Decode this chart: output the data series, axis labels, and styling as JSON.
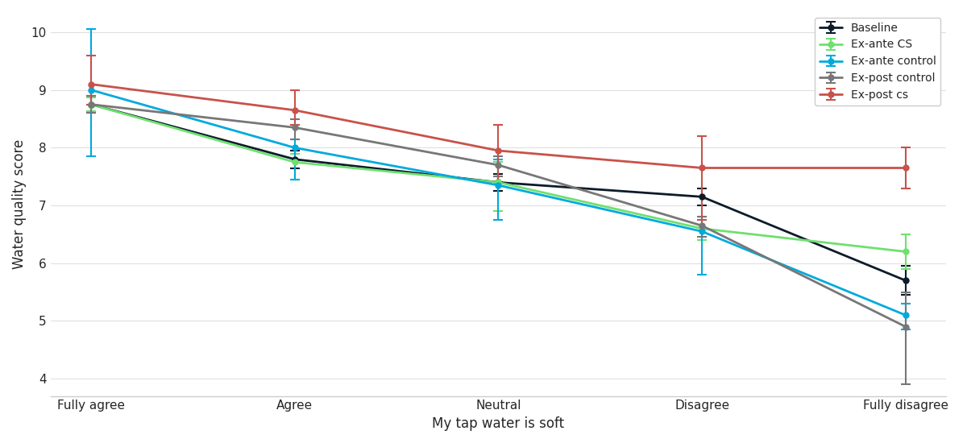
{
  "categories": [
    "Fully agree",
    "Agree",
    "Neutral",
    "Disagree",
    "Fully disagree"
  ],
  "series": [
    {
      "label": "Baseline",
      "color": "#0d1b2a",
      "y": [
        8.75,
        7.8,
        7.4,
        7.15,
        5.7
      ],
      "yerr_low": [
        0.15,
        0.15,
        0.15,
        0.15,
        0.25
      ],
      "yerr_high": [
        0.15,
        0.15,
        0.15,
        0.15,
        0.25
      ]
    },
    {
      "label": "Ex-ante CS",
      "color": "#6fe06f",
      "y": [
        8.75,
        7.75,
        7.4,
        6.6,
        6.2
      ],
      "yerr_low": [
        0.12,
        0.3,
        0.5,
        0.2,
        0.3
      ],
      "yerr_high": [
        0.12,
        0.15,
        0.35,
        0.2,
        0.3
      ]
    },
    {
      "label": "Ex-ante control",
      "color": "#00aadd",
      "y": [
        9.0,
        8.0,
        7.35,
        6.55,
        5.1
      ],
      "yerr_low": [
        1.15,
        0.55,
        0.6,
        0.75,
        0.25
      ],
      "yerr_high": [
        1.05,
        0.15,
        0.45,
        0.2,
        0.2
      ]
    },
    {
      "label": "Ex-post control",
      "color": "#777777",
      "y": [
        8.75,
        8.35,
        7.7,
        6.65,
        4.9
      ],
      "yerr_low": [
        0.15,
        0.2,
        0.2,
        0.2,
        1.0
      ],
      "yerr_high": [
        0.15,
        0.15,
        0.15,
        0.15,
        0.6
      ]
    },
    {
      "label": "Ex-post cs",
      "color": "#c8524a",
      "y": [
        9.1,
        8.65,
        7.95,
        7.65,
        7.65
      ],
      "yerr_low": [
        0.35,
        0.25,
        0.55,
        0.9,
        0.35
      ],
      "yerr_high": [
        0.5,
        0.35,
        0.45,
        0.55,
        0.35
      ]
    }
  ],
  "xlabel": "My tap water is soft",
  "ylabel": "Water quality score",
  "ylim": [
    3.7,
    10.35
  ],
  "yticks": [
    4,
    5,
    6,
    7,
    8,
    9,
    10
  ],
  "legend_loc": "upper right",
  "figsize": [
    12.0,
    5.5
  ],
  "dpi": 100
}
